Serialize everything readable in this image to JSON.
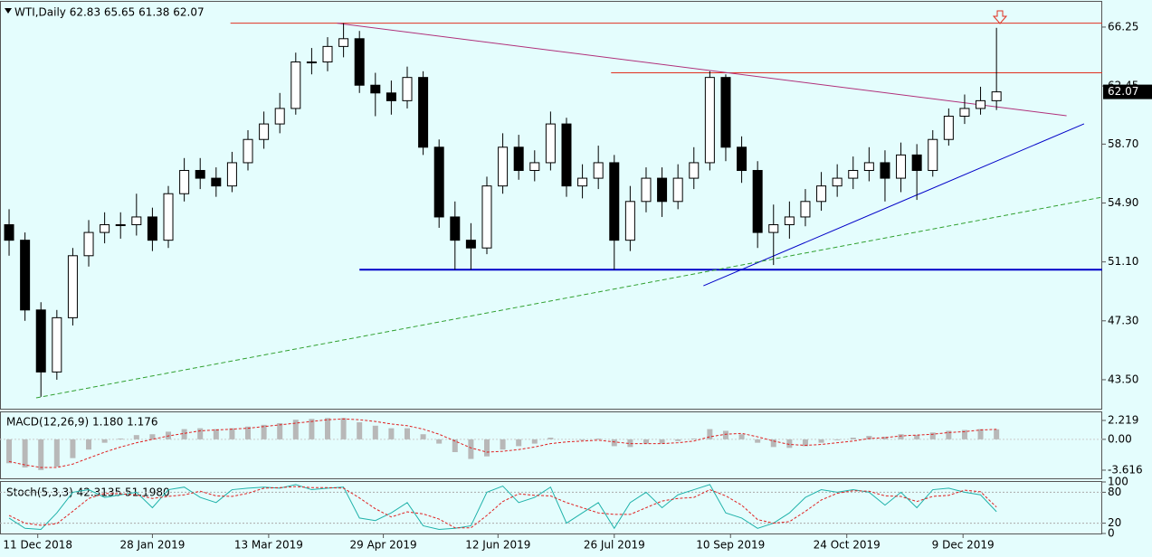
{
  "chart_data": {
    "type": "candlestick",
    "title": "WTI,Daily 62.83 65.65 61.38 62.07",
    "macd_title": "MACD(12,26,9) 1.180 1.176",
    "stoch_title": "Stoch(5,3,3) 42.3135 51.1980",
    "xlim": [
      -0.57,
      68.64
    ],
    "ylim": [
      41.63,
      67.88
    ],
    "yticks": [
      {
        "value": 43.5,
        "label": "43.50"
      },
      {
        "value": 47.3,
        "label": "47.30"
      },
      {
        "value": 51.1,
        "label": "51.10"
      },
      {
        "value": 54.9,
        "label": "54.90"
      },
      {
        "value": 58.7,
        "label": "58.70"
      },
      62.45,
      66.25
    ],
    "price_tag": 62.07,
    "xticks": [
      {
        "value": 1.8,
        "label": "11 Dec 2018"
      },
      {
        "value": 9,
        "label": "28 Jan 2019"
      },
      {
        "value": 16.3,
        "label": "13 Mar 2019"
      },
      {
        "value": 23.5,
        "label": "29 Apr 2019"
      },
      {
        "value": 30.7,
        "label": "12 Jun 2019"
      },
      {
        "value": 38,
        "label": "26 Jul 2019"
      },
      {
        "value": 45.3,
        "label": "10 Sep 2019"
      },
      {
        "value": 52.6,
        "label": "24 Oct 2019"
      },
      {
        "value": 59.9,
        "label": "9 Dec 2019"
      }
    ],
    "open": [
      53.5,
      52.5,
      48,
      44,
      47.5,
      51.5,
      53,
      53.5,
      53.5,
      54,
      52.5,
      55.5,
      57,
      56.5,
      56,
      57.5,
      59,
      60,
      61,
      64,
      64,
      65,
      65.5,
      62.5,
      62,
      61.5,
      63,
      58.5,
      54,
      52.5,
      52,
      56,
      58.5,
      57,
      57.5,
      60,
      56,
      56.5,
      57.5,
      52.5,
      55,
      56.5,
      55,
      56.5,
      57.5,
      63,
      58.5,
      57,
      53,
      53.5,
      54,
      55,
      56,
      56.5,
      57,
      57.5,
      56.5,
      58,
      57,
      59,
      60.5,
      61,
      61.5
    ],
    "high": [
      54.5,
      53,
      48.5,
      48,
      52,
      53.8,
      54.3,
      54.3,
      55.5,
      54.6,
      56,
      57.8,
      57.8,
      57.2,
      58.2,
      59.6,
      60.8,
      62,
      64.6,
      64.9,
      65.6,
      66.5,
      66,
      63.3,
      62.8,
      63.7,
      63.4,
      59,
      55,
      53.6,
      56.6,
      59.4,
      59.3,
      58.3,
      60.8,
      60.4,
      57.4,
      58.6,
      58,
      56,
      57.2,
      57.2,
      57.4,
      58.5,
      63.4,
      63.2,
      59.2,
      57.6,
      54.8,
      55,
      55.8,
      56.9,
      57.4,
      57.9,
      58.5,
      58.3,
      58.8,
      58.7,
      59.6,
      61,
      61.9,
      62.4,
      66.2
    ],
    "low": [
      51.5,
      47.3,
      42.4,
      43.5,
      47,
      50.8,
      52.3,
      52.6,
      52.8,
      51.8,
      52,
      55,
      55.8,
      55.3,
      55.6,
      57,
      58.4,
      59.4,
      60.6,
      63.2,
      63.4,
      64.3,
      62,
      60.5,
      60.6,
      61,
      58,
      53.3,
      50.6,
      50.6,
      51.6,
      55.5,
      56.4,
      56.3,
      57,
      55.3,
      55.2,
      55.8,
      50.6,
      51.8,
      54.3,
      54,
      54.5,
      55.8,
      57,
      57.6,
      56.2,
      52,
      50.9,
      52.6,
      53.4,
      54.4,
      55.3,
      55.8,
      56.3,
      55,
      55.6,
      55.1,
      56.6,
      58.6,
      60,
      60.6,
      60.9
    ],
    "close": [
      52.5,
      48,
      44,
      47.5,
      51.5,
      53,
      53.5,
      53.5,
      54,
      52.5,
      55.5,
      57,
      56.5,
      56,
      57.5,
      59,
      60,
      61,
      64,
      64,
      65,
      65.5,
      62.5,
      62,
      61.5,
      63,
      58.5,
      54,
      52.5,
      52,
      56,
      58.5,
      57,
      57.5,
      60,
      56,
      56.5,
      57.5,
      52.5,
      55,
      56.5,
      55,
      56.5,
      57.5,
      63,
      58.5,
      57,
      53,
      53.5,
      54,
      55,
      56,
      56.5,
      57,
      57.5,
      56.5,
      58,
      57,
      59,
      60.5,
      61,
      61.5,
      62.07
    ],
    "lines": [
      {
        "color": "#e03020",
        "dash": false,
        "x": [
          13.9,
          68.64
        ],
        "y": [
          66.5,
          66.5
        ]
      },
      {
        "color": "#e03020",
        "dash": false,
        "x": [
          37.8,
          68.64
        ],
        "y": [
          63.3,
          63.3
        ]
      },
      {
        "color": "#0000c8",
        "dash": false,
        "x": [
          22,
          68.64
        ],
        "y": [
          50.6,
          50.6
        ]
      },
      {
        "color": "#b0307a",
        "dash": false,
        "x": [
          20.6,
          66.4
        ],
        "y": [
          66.5,
          60.53
        ]
      },
      {
        "color": "#0000c8",
        "dash": false,
        "x": [
          43.6,
          67.5
        ],
        "y": [
          49.56,
          60.01
        ]
      },
      {
        "color": "#30a030",
        "dash": true,
        "x": [
          1.7,
          68.64
        ],
        "y": [
          42.33,
          55.28
        ]
      }
    ],
    "macd": {
      "ylim": [
        -4.68,
        3.17
      ],
      "yticks": [
        2.219,
        {
          "value": 0,
          "label": "0.00"
        },
        -3.616
      ],
      "values": [
        -2.8,
        -3.3,
        -3.6,
        -3.2,
        -2.2,
        -1.2,
        -0.4,
        0.1,
        0.5,
        0.6,
        0.9,
        1.2,
        1.3,
        1.2,
        1.3,
        1.5,
        1.7,
        1.9,
        2.3,
        2.4,
        2.5,
        2.5,
        2.0,
        1.6,
        1.3,
        1.3,
        0.6,
        -0.5,
        -1.5,
        -2.3,
        -2.0,
        -1.2,
        -0.8,
        -0.5,
        0.2,
        0.0,
        -0.1,
        0.1,
        -0.8,
        -0.9,
        -0.5,
        -0.5,
        -0.2,
        0.1,
        1.2,
        1.0,
        0.6,
        -0.4,
        -0.9,
        -1.0,
        -0.8,
        -0.4,
        -0.1,
        0.2,
        0.4,
        0.3,
        0.6,
        0.5,
        0.8,
        1.0,
        1.1,
        1.2,
        1.18
      ],
      "signal": [
        -2.6,
        -3.0,
        -3.3,
        -3.3,
        -2.9,
        -2.2,
        -1.5,
        -0.9,
        -0.4,
        0.0,
        0.4,
        0.7,
        1.0,
        1.1,
        1.2,
        1.3,
        1.5,
        1.7,
        1.9,
        2.1,
        2.3,
        2.4,
        2.3,
        2.1,
        1.8,
        1.6,
        1.2,
        0.6,
        -0.2,
        -1.0,
        -1.5,
        -1.4,
        -1.2,
        -0.9,
        -0.5,
        -0.3,
        -0.2,
        -0.1,
        -0.3,
        -0.5,
        -0.5,
        -0.5,
        -0.4,
        -0.2,
        0.3,
        0.6,
        0.7,
        0.3,
        -0.2,
        -0.6,
        -0.7,
        -0.6,
        -0.4,
        -0.2,
        0.1,
        0.2,
        0.4,
        0.5,
        0.6,
        0.8,
        0.9,
        1.1,
        1.176
      ]
    },
    "stoch": {
      "ylim": [
        0,
        100
      ],
      "yticks": [
        0,
        20,
        80,
        100
      ],
      "k": [
        30,
        10,
        8,
        40,
        80,
        85,
        70,
        75,
        80,
        50,
        85,
        90,
        70,
        60,
        85,
        88,
        90,
        88,
        95,
        85,
        88,
        90,
        30,
        25,
        40,
        60,
        15,
        8,
        10,
        15,
        80,
        92,
        60,
        70,
        90,
        20,
        40,
        60,
        10,
        60,
        80,
        50,
        75,
        85,
        95,
        40,
        30,
        10,
        20,
        40,
        70,
        85,
        80,
        85,
        80,
        55,
        80,
        50,
        85,
        88,
        80,
        75,
        42.3135
      ],
      "d": [
        35,
        20,
        16,
        19,
        43,
        68,
        78,
        77,
        75,
        68,
        72,
        75,
        82,
        73,
        72,
        78,
        88,
        89,
        91,
        89,
        89,
        88,
        69,
        48,
        32,
        42,
        38,
        28,
        11,
        11,
        35,
        62,
        77,
        74,
        73,
        60,
        50,
        40,
        37,
        37,
        50,
        63,
        68,
        70,
        85,
        73,
        55,
        27,
        20,
        23,
        43,
        65,
        78,
        83,
        82,
        73,
        72,
        62,
        72,
        74,
        84,
        81,
        51.198
      ]
    }
  }
}
